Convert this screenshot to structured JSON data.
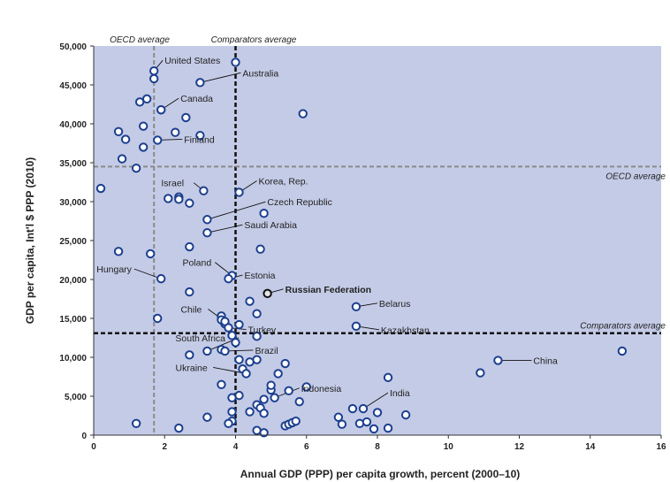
{
  "chart_data": {
    "type": "scatter",
    "xlabel": "Annual GDP (PPP) per capita growth, percent (2000–10)",
    "ylabel": "GDP per capita, Int'l $ PPP (2010)",
    "xlim": [
      0,
      16
    ],
    "ylim": [
      0,
      50000
    ],
    "x_ticks": [
      "0",
      "2",
      "4",
      "6",
      "8",
      "10",
      "12",
      "14",
      "16"
    ],
    "y_ticks": [
      "0",
      "5,000",
      "10,000",
      "15,000",
      "20,000",
      "25,000",
      "30,000",
      "35,000",
      "40,000",
      "45,000",
      "50,000"
    ],
    "grid": false,
    "reference_lines": {
      "oecd_avg_x": {
        "value": 1.7,
        "label": "OECD average"
      },
      "comparators_avg_x": {
        "value": 4.0,
        "label": "Comparators average"
      },
      "oecd_avg_y": {
        "value": 34500,
        "label": "OECD average"
      },
      "comparators_avg_y": {
        "value": 13100,
        "label": "Comparators average"
      }
    },
    "labeled_points": [
      {
        "name": "United States",
        "x": 1.7,
        "y": 46800
      },
      {
        "name": "Australia",
        "x": 3.0,
        "y": 45300
      },
      {
        "name": "Canada",
        "x": 1.9,
        "y": 41800
      },
      {
        "name": "Finland",
        "x": 1.8,
        "y": 37900
      },
      {
        "name": "Korea, Rep.",
        "x": 4.1,
        "y": 31200
      },
      {
        "name": "Israel",
        "x": 3.1,
        "y": 31400
      },
      {
        "name": "Czech Republic",
        "x": 3.2,
        "y": 27700
      },
      {
        "name": "Saudi Arabia",
        "x": 3.2,
        "y": 26000
      },
      {
        "name": "Hungary",
        "x": 1.9,
        "y": 20100
      },
      {
        "name": "Poland",
        "x": 3.9,
        "y": 20500
      },
      {
        "name": "Estonia",
        "x": 3.8,
        "y": 20100
      },
      {
        "name": "Russian Federation",
        "x": 4.9,
        "y": 18200,
        "highlight": true
      },
      {
        "name": "Belarus",
        "x": 7.4,
        "y": 16500
      },
      {
        "name": "Chile",
        "x": 3.7,
        "y": 14600
      },
      {
        "name": "Turkey",
        "x": 3.8,
        "y": 13800
      },
      {
        "name": "Kazakhstan",
        "x": 7.4,
        "y": 14000
      },
      {
        "name": "South Africa",
        "x": 3.2,
        "y": 10800
      },
      {
        "name": "Brazil",
        "x": 3.7,
        "y": 10800
      },
      {
        "name": "Ukraine",
        "x": 4.3,
        "y": 7900
      },
      {
        "name": "Indonesia",
        "x": 5.1,
        "y": 4800
      },
      {
        "name": "India",
        "x": 7.6,
        "y": 3400
      },
      {
        "name": "China",
        "x": 11.4,
        "y": 9600
      }
    ],
    "other_points": [
      [
        0.2,
        31700
      ],
      [
        0.7,
        23600
      ],
      [
        0.7,
        39000
      ],
      [
        0.8,
        35500
      ],
      [
        0.9,
        38000
      ],
      [
        1.2,
        34300
      ],
      [
        1.3,
        42800
      ],
      [
        1.4,
        39700
      ],
      [
        1.5,
        43200
      ],
      [
        1.4,
        37000
      ],
      [
        1.6,
        23300
      ],
      [
        1.7,
        45800
      ],
      [
        1.8,
        15000
      ],
      [
        2.1,
        30400
      ],
      [
        2.3,
        38900
      ],
      [
        2.4,
        30600
      ],
      [
        2.4,
        30300
      ],
      [
        2.6,
        40800
      ],
      [
        2.7,
        29800
      ],
      [
        2.7,
        24200
      ],
      [
        2.7,
        18400
      ],
      [
        3.0,
        38500
      ],
      [
        3.6,
        15300
      ],
      [
        3.6,
        14800
      ],
      [
        3.7,
        14300
      ],
      [
        3.9,
        12800
      ],
      [
        3.6,
        11000
      ],
      [
        4.0,
        11900
      ],
      [
        4.1,
        14200
      ],
      [
        4.4,
        17200
      ],
      [
        4.6,
        15600
      ],
      [
        4.6,
        12700
      ],
      [
        4.7,
        23900
      ],
      [
        4.8,
        28500
      ],
      [
        5.9,
        41300
      ],
      [
        4.0,
        47900
      ],
      [
        2.7,
        10300
      ],
      [
        4.1,
        9700
      ],
      [
        4.4,
        9400
      ],
      [
        4.6,
        9700
      ],
      [
        4.2,
        8500
      ],
      [
        4.1,
        5100
      ],
      [
        3.6,
        6500
      ],
      [
        3.9,
        4800
      ],
      [
        3.9,
        3000
      ],
      [
        3.9,
        1800
      ],
      [
        3.8,
        1500
      ],
      [
        4.4,
        3000
      ],
      [
        4.6,
        3900
      ],
      [
        4.7,
        3500
      ],
      [
        4.8,
        2800
      ],
      [
        4.8,
        4600
      ],
      [
        5.0,
        5800
      ],
      [
        5.0,
        6400
      ],
      [
        5.2,
        7900
      ],
      [
        5.4,
        9200
      ],
      [
        5.5,
        5700
      ],
      [
        6.0,
        6200
      ],
      [
        5.4,
        1200
      ],
      [
        5.5,
        1400
      ],
      [
        5.6,
        1600
      ],
      [
        5.7,
        1800
      ],
      [
        5.8,
        4300
      ],
      [
        3.2,
        2300
      ],
      [
        2.4,
        900
      ],
      [
        1.2,
        1500
      ],
      [
        4.6,
        600
      ],
      [
        4.8,
        300
      ],
      [
        6.9,
        2300
      ],
      [
        7.0,
        1400
      ],
      [
        7.3,
        3400
      ],
      [
        7.5,
        1500
      ],
      [
        7.7,
        1700
      ],
      [
        7.9,
        800
      ],
      [
        8.0,
        2900
      ],
      [
        8.3,
        7400
      ],
      [
        8.3,
        900
      ],
      [
        8.8,
        2600
      ],
      [
        10.9,
        8000
      ],
      [
        14.9,
        10800
      ],
      [
        1.9,
        41800
      ]
    ]
  }
}
